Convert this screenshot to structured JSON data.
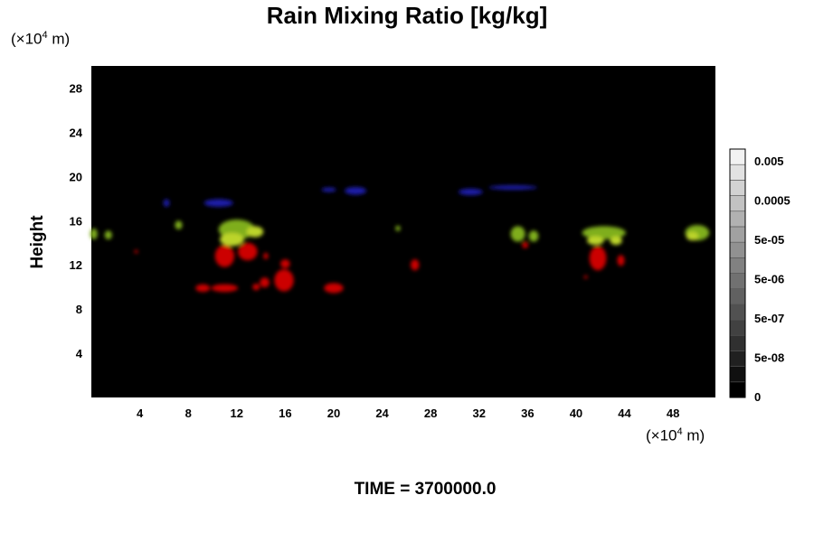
{
  "header": {
    "title": "Rain Mixing Ratio [kg/kg]"
  },
  "footer": {
    "time_label": "TIME = 3700000.0"
  },
  "colors": {
    "background": "#000000",
    "red": "#cc0000",
    "green": "#7fae1a",
    "yellowgreen": "#bcd42a",
    "blue": "#1a1aa8"
  },
  "chart_data": {
    "type": "heatmap",
    "title": "Rain Mixing Ratio [kg/kg]",
    "xlabel": "",
    "ylabel": "Height",
    "x_unit": {
      "prefix": "(×10",
      "exp": "4",
      "suffix": " m)"
    },
    "y_unit": {
      "prefix": "(×10",
      "exp": "4",
      "suffix": " m)"
    },
    "xlim": [
      0,
      51.5
    ],
    "ylim": [
      0,
      30
    ],
    "x_ticks": [
      "4",
      "8",
      "12",
      "16",
      "20",
      "24",
      "28",
      "32",
      "36",
      "40",
      "44",
      "48"
    ],
    "y_ticks": [
      "4",
      "8",
      "12",
      "16",
      "20",
      "24",
      "28"
    ],
    "grid": false,
    "colorbar": {
      "labels": [
        "0.005",
        "0.0005",
        "5e-05",
        "5e-06",
        "5e-07",
        "5e-08",
        "0"
      ],
      "levels": 16,
      "color_low": "#000000",
      "color_high": "#f2f2f2"
    },
    "blobs": [
      {
        "x": 0.2,
        "y": 14.8,
        "rx": 0.3,
        "ry": 0.5,
        "color": "green"
      },
      {
        "x": 1.4,
        "y": 14.7,
        "rx": 0.3,
        "ry": 0.4,
        "color": "green"
      },
      {
        "x": 3.7,
        "y": 13.2,
        "rx": 0.15,
        "ry": 0.15,
        "color": "red"
      },
      {
        "x": 6.2,
        "y": 17.6,
        "rx": 0.25,
        "ry": 0.35,
        "color": "blue"
      },
      {
        "x": 7.2,
        "y": 15.6,
        "rx": 0.3,
        "ry": 0.4,
        "color": "green"
      },
      {
        "x": 10.5,
        "y": 17.6,
        "rx": 1.2,
        "ry": 0.35,
        "color": "blue"
      },
      {
        "x": 12.0,
        "y": 15.2,
        "rx": 1.5,
        "ry": 0.9,
        "color": "green"
      },
      {
        "x": 11.6,
        "y": 14.3,
        "rx": 1.0,
        "ry": 0.6,
        "color": "yellowgreen"
      },
      {
        "x": 13.5,
        "y": 15.0,
        "rx": 0.7,
        "ry": 0.5,
        "color": "yellowgreen"
      },
      {
        "x": 11.0,
        "y": 12.8,
        "rx": 0.8,
        "ry": 1.0,
        "color": "red"
      },
      {
        "x": 12.9,
        "y": 13.2,
        "rx": 0.8,
        "ry": 0.8,
        "color": "red"
      },
      {
        "x": 14.4,
        "y": 12.8,
        "rx": 0.2,
        "ry": 0.3,
        "color": "red"
      },
      {
        "x": 9.2,
        "y": 9.9,
        "rx": 0.6,
        "ry": 0.35,
        "color": "red"
      },
      {
        "x": 11.0,
        "y": 9.9,
        "rx": 1.1,
        "ry": 0.35,
        "color": "red"
      },
      {
        "x": 13.6,
        "y": 10.0,
        "rx": 0.3,
        "ry": 0.3,
        "color": "red"
      },
      {
        "x": 14.3,
        "y": 10.4,
        "rx": 0.4,
        "ry": 0.45,
        "color": "red"
      },
      {
        "x": 15.9,
        "y": 10.6,
        "rx": 0.8,
        "ry": 1.0,
        "color": "red"
      },
      {
        "x": 16.0,
        "y": 12.1,
        "rx": 0.4,
        "ry": 0.4,
        "color": "red"
      },
      {
        "x": 20.0,
        "y": 9.9,
        "rx": 0.8,
        "ry": 0.45,
        "color": "red"
      },
      {
        "x": 19.6,
        "y": 18.8,
        "rx": 0.6,
        "ry": 0.2,
        "color": "blue"
      },
      {
        "x": 21.8,
        "y": 18.7,
        "rx": 0.9,
        "ry": 0.35,
        "color": "blue"
      },
      {
        "x": 25.3,
        "y": 15.3,
        "rx": 0.2,
        "ry": 0.25,
        "color": "green"
      },
      {
        "x": 26.7,
        "y": 12.0,
        "rx": 0.35,
        "ry": 0.5,
        "color": "red"
      },
      {
        "x": 31.3,
        "y": 18.6,
        "rx": 1.0,
        "ry": 0.3,
        "color": "blue"
      },
      {
        "x": 34.8,
        "y": 19.0,
        "rx": 2.0,
        "ry": 0.2,
        "color": "blue"
      },
      {
        "x": 35.2,
        "y": 14.8,
        "rx": 0.6,
        "ry": 0.7,
        "color": "green"
      },
      {
        "x": 36.5,
        "y": 14.6,
        "rx": 0.4,
        "ry": 0.5,
        "color": "green"
      },
      {
        "x": 35.8,
        "y": 13.8,
        "rx": 0.25,
        "ry": 0.3,
        "color": "red"
      },
      {
        "x": 42.3,
        "y": 14.9,
        "rx": 1.8,
        "ry": 0.6,
        "color": "green"
      },
      {
        "x": 41.6,
        "y": 14.2,
        "rx": 0.7,
        "ry": 0.4,
        "color": "yellowgreen"
      },
      {
        "x": 43.3,
        "y": 14.2,
        "rx": 0.5,
        "ry": 0.4,
        "color": "yellowgreen"
      },
      {
        "x": 41.8,
        "y": 12.6,
        "rx": 0.7,
        "ry": 1.1,
        "color": "red"
      },
      {
        "x": 43.7,
        "y": 12.4,
        "rx": 0.3,
        "ry": 0.5,
        "color": "red"
      },
      {
        "x": 40.8,
        "y": 10.9,
        "rx": 0.15,
        "ry": 0.15,
        "color": "red"
      },
      {
        "x": 50.0,
        "y": 14.9,
        "rx": 1.0,
        "ry": 0.7,
        "color": "green"
      },
      {
        "x": 49.6,
        "y": 14.6,
        "rx": 0.5,
        "ry": 0.4,
        "color": "yellowgreen"
      }
    ]
  }
}
